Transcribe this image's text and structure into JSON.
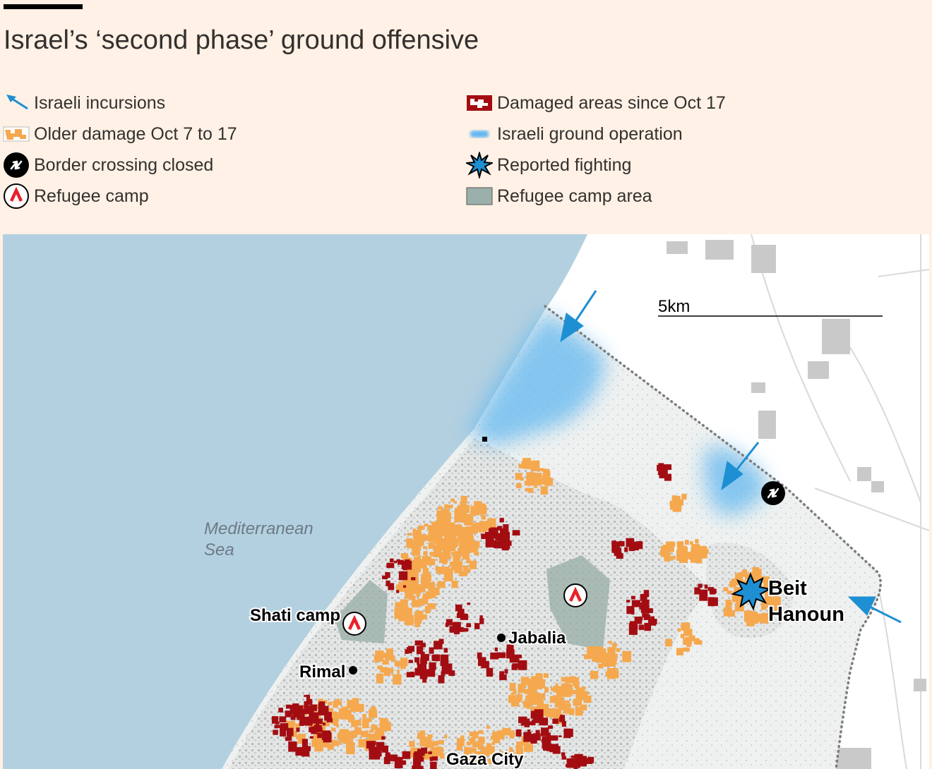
{
  "title": "Israel’s ‘second phase’ ground offensive",
  "legend": {
    "left": [
      {
        "label": "Israeli incursions",
        "icon": "arrow-icon"
      },
      {
        "label": "Older damage Oct 7 to 17",
        "icon": "older-damage-swatch"
      },
      {
        "label": "Border crossing closed",
        "icon": "border-crossing-icon"
      },
      {
        "label": "Refugee camp",
        "icon": "refugee-camp-icon"
      }
    ],
    "right": [
      {
        "label": "Damaged areas since Oct 17",
        "icon": "recent-damage-swatch"
      },
      {
        "label": "Israeli ground operation",
        "icon": "ground-operation-swatch"
      },
      {
        "label": "Reported fighting",
        "icon": "fighting-icon"
      },
      {
        "label": "Refugee camp area",
        "icon": "camp-area-swatch"
      }
    ]
  },
  "map": {
    "sea_label": [
      "Mediterranean",
      "Sea"
    ],
    "scale_label": "5km",
    "places": {
      "shati": "Shati camp",
      "jabalia": "Jabalia",
      "rimal": "Rimal",
      "beit": "Beit",
      "hanoun": "Hanoun",
      "gaza_city": "Gaza City"
    }
  },
  "colors": {
    "background": "#fff1e5",
    "sea": "#b3d0e0",
    "land": "#eef1f0",
    "israel": "#ffffff",
    "recent_damage": "#a30d12",
    "older_damage": "#f5a84e",
    "ground_operation": "#63b8f0",
    "arrow": "#1e8fd3",
    "camp_area": "#9bb0aa",
    "border": "#888888"
  }
}
